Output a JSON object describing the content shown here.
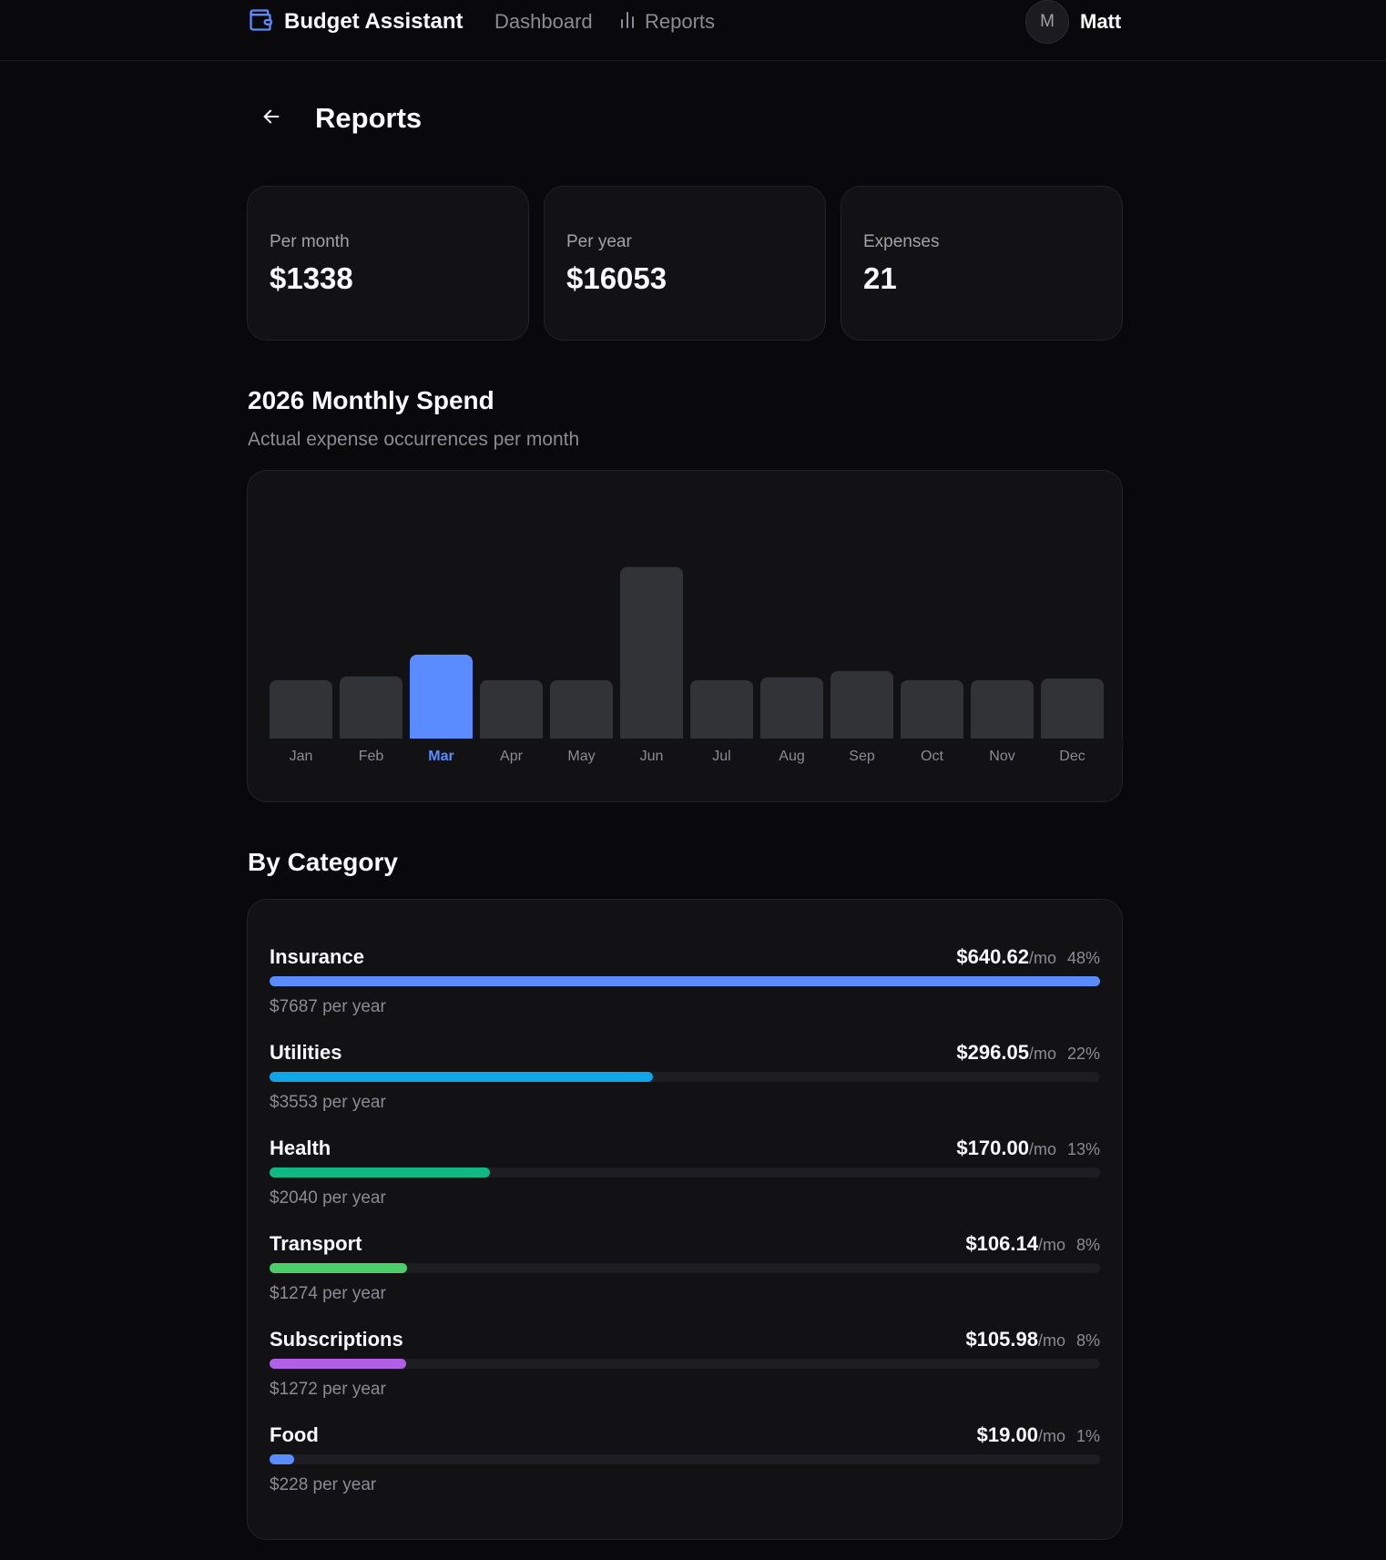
{
  "header": {
    "brand": "Budget Assistant",
    "brand_icon": "wallet-icon",
    "nav": [
      {
        "label": "Dashboard"
      },
      {
        "label": "Reports",
        "icon": "bar-chart-icon"
      }
    ],
    "user": {
      "initial": "M",
      "name": "Matt"
    }
  },
  "page": {
    "title": "Reports",
    "back_icon": "arrow-left-icon"
  },
  "stats": [
    {
      "label": "Per month",
      "value": "$1338"
    },
    {
      "label": "Per year",
      "value": "$16053"
    },
    {
      "label": "Expenses",
      "value": "21"
    }
  ],
  "monthly": {
    "title": "2026 Monthly Spend",
    "subtitle": "Actual expense occurrences per month"
  },
  "chart_data": {
    "type": "bar",
    "title": "2026 Monthly Spend",
    "categories": [
      "Jan",
      "Feb",
      "Mar",
      "Apr",
      "May",
      "Jun",
      "Jul",
      "Aug",
      "Sep",
      "Oct",
      "Nov",
      "Dec"
    ],
    "values": [
      1100,
      1170,
      1580,
      1100,
      1100,
      3230,
      1100,
      1150,
      1270,
      1100,
      1100,
      1130
    ],
    "highlight": "Mar",
    "ylim": [
      0,
      3600
    ],
    "grid": false,
    "colors": {
      "bar": "#323336",
      "highlight": "#5b8cff",
      "label": "#8b8b93",
      "highlight_label": "#5b8cff"
    }
  },
  "categories_section": {
    "title": "By Category"
  },
  "categories": [
    {
      "name": "Insurance",
      "amount": "$640.62",
      "unit": "/mo",
      "pct": "48%",
      "yearly": "$7687 per year",
      "fraction": 1.0,
      "color": "#5b8cff"
    },
    {
      "name": "Utilities",
      "amount": "$296.05",
      "unit": "/mo",
      "pct": "22%",
      "yearly": "$3553 per year",
      "fraction": 0.462,
      "color": "#0ea5e9"
    },
    {
      "name": "Health",
      "amount": "$170.00",
      "unit": "/mo",
      "pct": "13%",
      "yearly": "$2040 per year",
      "fraction": 0.265,
      "color": "#10b981"
    },
    {
      "name": "Transport",
      "amount": "$106.14",
      "unit": "/mo",
      "pct": "8%",
      "yearly": "$1274 per year",
      "fraction": 0.166,
      "color": "#4ccf6a"
    },
    {
      "name": "Subscriptions",
      "amount": "$105.98",
      "unit": "/mo",
      "pct": "8%",
      "yearly": "$1272 per year",
      "fraction": 0.165,
      "color": "#b15fe6"
    },
    {
      "name": "Food",
      "amount": "$19.00",
      "unit": "/mo",
      "pct": "1%",
      "yearly": "$228 per year",
      "fraction": 0.03,
      "color": "#5b8cff"
    }
  ]
}
